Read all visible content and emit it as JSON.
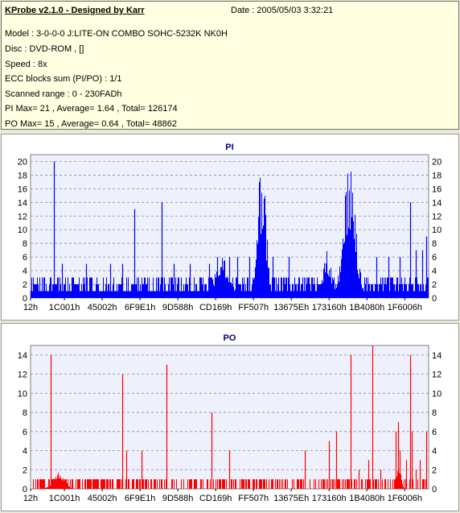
{
  "info": {
    "title": "KProbe v2.1.0 - Designed by Karr",
    "date": "Date : 2005/05/03 3:32:21",
    "lines": [
      "Model : 3-0-0-0 J:LITE-ON COMBO SOHC-5232K NK0H",
      "Disc : DVD-ROM ,  []",
      "Speed : 8x",
      "ECC blocks sum (PI/PO) : 1/1",
      "Scanned range : 0 - 230FADh",
      "PI Max= 21 , Average= 1.64 , Total= 126174",
      "PO Max= 15 , Average= 0.64 , Total= 48862"
    ]
  },
  "chart_data": [
    {
      "type": "bar",
      "title": "PI",
      "color": "#0000ff",
      "x_tick_labels": [
        "12h",
        "1C001h",
        "45002h",
        "6F9E1h",
        "9D588h",
        "CD169h",
        "FF507h",
        "13675Eh",
        "173160h",
        "1B4080h",
        "1F6006h"
      ],
      "y_ticks": [
        0,
        2,
        4,
        6,
        8,
        10,
        12,
        14,
        16,
        18,
        20
      ],
      "ylim": [
        0,
        21
      ],
      "right_axis": true,
      "grid": true,
      "baseline_range": [
        1,
        3
      ],
      "spikes": [
        [
          0.058,
          20
        ],
        [
          0.078,
          5
        ],
        [
          0.14,
          5
        ],
        [
          0.2,
          5
        ],
        [
          0.23,
          5
        ],
        [
          0.262,
          13
        ],
        [
          0.33,
          14
        ],
        [
          0.36,
          5
        ],
        [
          0.4,
          5
        ],
        [
          0.45,
          5
        ],
        [
          0.47,
          6
        ],
        [
          0.5,
          6
        ],
        [
          0.52,
          6
        ],
        [
          0.55,
          6
        ],
        [
          0.58,
          7
        ],
        [
          0.61,
          6
        ],
        [
          0.65,
          6
        ],
        [
          0.8,
          7
        ],
        [
          0.87,
          6
        ],
        [
          0.9,
          6
        ],
        [
          0.93,
          6
        ],
        [
          0.955,
          14
        ],
        [
          0.97,
          7
        ],
        [
          0.985,
          7
        ],
        [
          0.995,
          9
        ]
      ],
      "peaks": [
        {
          "center": 0.58,
          "width": 0.022,
          "height": 21
        },
        {
          "center": 0.8,
          "width": 0.032,
          "height": 21
        },
        {
          "center": 0.745,
          "width": 0.022,
          "height": 7
        },
        {
          "center": 0.48,
          "width": 0.04,
          "height": 6
        }
      ],
      "x_tick_positions": [
        0.0,
        0.085,
        0.18,
        0.275,
        0.37,
        0.465,
        0.56,
        0.655,
        0.75,
        0.845,
        0.94
      ]
    },
    {
      "type": "bar",
      "title": "PO",
      "color": "#ff0000",
      "x_tick_labels": [
        "12h",
        "1C001h",
        "45002h",
        "6F9E1h",
        "9D588h",
        "CD169h",
        "FF507h",
        "13675Eh",
        "173160h",
        "1B4080h",
        "1F6006h"
      ],
      "y_ticks": [
        0,
        2,
        4,
        6,
        8,
        10,
        12,
        14
      ],
      "ylim": [
        0,
        15
      ],
      "right_axis": true,
      "grid": true,
      "baseline_range": [
        0,
        1
      ],
      "spikes": [
        [
          0.05,
          14
        ],
        [
          0.23,
          12
        ],
        [
          0.24,
          4
        ],
        [
          0.28,
          4
        ],
        [
          0.342,
          13
        ],
        [
          0.455,
          8
        ],
        [
          0.5,
          4
        ],
        [
          0.69,
          4
        ],
        [
          0.75,
          5
        ],
        [
          0.77,
          6
        ],
        [
          0.805,
          14
        ],
        [
          0.825,
          2
        ],
        [
          0.85,
          3
        ],
        [
          0.88,
          2
        ],
        [
          0.86,
          15
        ],
        [
          0.92,
          6
        ],
        [
          0.925,
          7
        ],
        [
          0.93,
          4
        ],
        [
          0.945,
          3
        ],
        [
          0.955,
          14
        ],
        [
          0.96,
          6
        ],
        [
          0.97,
          2
        ],
        [
          0.98,
          3
        ],
        [
          0.995,
          6
        ]
      ],
      "peaks": [
        {
          "center": 0.925,
          "width": 0.01,
          "height": 3
        },
        {
          "center": 0.07,
          "width": 0.03,
          "height": 2
        }
      ],
      "x_tick_positions": [
        0.0,
        0.085,
        0.18,
        0.275,
        0.37,
        0.465,
        0.56,
        0.655,
        0.75,
        0.845,
        0.94
      ]
    }
  ]
}
